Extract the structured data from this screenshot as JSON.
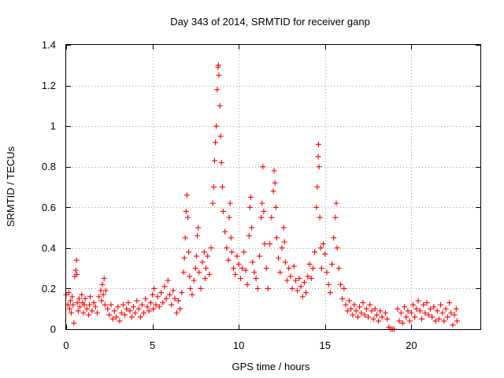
{
  "chart_data": {
    "type": "scatter",
    "title": "Day 343 of 2014, SRMTID for receiver ganp",
    "xlabel": "GPS time / hours",
    "ylabel": "SRMTID / TECUs",
    "xlim": [
      0,
      24
    ],
    "ylim": [
      0,
      1.4
    ],
    "x_ticks": [
      0,
      5,
      10,
      15,
      20
    ],
    "y_ticks": [
      0,
      0.2,
      0.4,
      0.6,
      0.8,
      1,
      1.2,
      1.4
    ],
    "x_tick_labels": [
      "0",
      "5",
      "10",
      "15",
      "20"
    ],
    "y_tick_labels": [
      "0",
      "0.2",
      "0.4",
      "0.6",
      "0.8",
      "1",
      "1.2",
      "1.4"
    ],
    "grid": true,
    "marker": "plus",
    "series": [
      {
        "name": "SRMTID",
        "color": "#ff0000",
        "points": [
          [
            0.0,
            0.17
          ],
          [
            0.1,
            0.12
          ],
          [
            0.15,
            0.18
          ],
          [
            0.2,
            0.1
          ],
          [
            0.25,
            0.14
          ],
          [
            0.3,
            0.08
          ],
          [
            0.35,
            0.16
          ],
          [
            0.4,
            0.12
          ],
          [
            0.45,
            0.03
          ],
          [
            0.5,
            0.26
          ],
          [
            0.55,
            0.29
          ],
          [
            0.6,
            0.34
          ],
          [
            0.62,
            0.27
          ],
          [
            0.65,
            0.13
          ],
          [
            0.7,
            0.09
          ],
          [
            0.75,
            0.15
          ],
          [
            0.8,
            0.11
          ],
          [
            0.9,
            0.17
          ],
          [
            0.95,
            0.13
          ],
          [
            1.0,
            0.08
          ],
          [
            1.05,
            0.12
          ],
          [
            1.1,
            0.15
          ],
          [
            1.2,
            0.1
          ],
          [
            1.3,
            0.07
          ],
          [
            1.35,
            0.12
          ],
          [
            1.4,
            0.16
          ],
          [
            1.5,
            0.09
          ],
          [
            1.6,
            0.13
          ],
          [
            1.7,
            0.11
          ],
          [
            1.8,
            0.08
          ],
          [
            1.9,
            0.16
          ],
          [
            2.0,
            0.19
          ],
          [
            2.05,
            0.14
          ],
          [
            2.1,
            0.22
          ],
          [
            2.15,
            0.17
          ],
          [
            2.2,
            0.25
          ],
          [
            2.25,
            0.12
          ],
          [
            2.3,
            0.19
          ],
          [
            2.4,
            0.1
          ],
          [
            2.5,
            0.07
          ],
          [
            2.6,
            0.12
          ],
          [
            2.7,
            0.05
          ],
          [
            2.8,
            0.09
          ],
          [
            2.9,
            0.06
          ],
          [
            3.0,
            0.11
          ],
          [
            3.1,
            0.04
          ],
          [
            3.2,
            0.08
          ],
          [
            3.3,
            0.12
          ],
          [
            3.4,
            0.07
          ],
          [
            3.5,
            0.1
          ],
          [
            3.6,
            0.13
          ],
          [
            3.7,
            0.09
          ],
          [
            3.8,
            0.06
          ],
          [
            3.9,
            0.11
          ],
          [
            4.0,
            0.08
          ],
          [
            4.1,
            0.14
          ],
          [
            4.2,
            0.1
          ],
          [
            4.3,
            0.06
          ],
          [
            4.4,
            0.12
          ],
          [
            4.5,
            0.08
          ],
          [
            4.6,
            0.15
          ],
          [
            4.7,
            0.11
          ],
          [
            4.8,
            0.09
          ],
          [
            4.9,
            0.13
          ],
          [
            5.0,
            0.17
          ],
          [
            5.05,
            0.1
          ],
          [
            5.1,
            0.2
          ],
          [
            5.2,
            0.12
          ],
          [
            5.3,
            0.16
          ],
          [
            5.4,
            0.11
          ],
          [
            5.5,
            0.18
          ],
          [
            5.6,
            0.13
          ],
          [
            5.7,
            0.21
          ],
          [
            5.8,
            0.15
          ],
          [
            5.9,
            0.24
          ],
          [
            6.0,
            0.17
          ],
          [
            6.1,
            0.12
          ],
          [
            6.2,
            0.19
          ],
          [
            6.3,
            0.15
          ],
          [
            6.4,
            0.08
          ],
          [
            6.5,
            0.14
          ],
          [
            6.6,
            0.1
          ],
          [
            6.7,
            0.18
          ],
          [
            6.8,
            0.28
          ],
          [
            6.85,
            0.35
          ],
          [
            6.9,
            0.45
          ],
          [
            6.95,
            0.58
          ],
          [
            7.0,
            0.66
          ],
          [
            7.05,
            0.55
          ],
          [
            7.1,
            0.38
          ],
          [
            7.15,
            0.26
          ],
          [
            7.2,
            0.2
          ],
          [
            7.3,
            0.17
          ],
          [
            7.4,
            0.24
          ],
          [
            7.5,
            0.3
          ],
          [
            7.55,
            0.36
          ],
          [
            7.6,
            0.46
          ],
          [
            7.65,
            0.5
          ],
          [
            7.7,
            0.28
          ],
          [
            7.8,
            0.2
          ],
          [
            7.9,
            0.33
          ],
          [
            8.0,
            0.38
          ],
          [
            8.05,
            0.25
          ],
          [
            8.1,
            0.3
          ],
          [
            8.2,
            0.36
          ],
          [
            8.3,
            0.27
          ],
          [
            8.4,
            0.4
          ],
          [
            8.5,
            0.62
          ],
          [
            8.55,
            0.7
          ],
          [
            8.6,
            0.83
          ],
          [
            8.65,
            0.92
          ],
          [
            8.7,
            1.0
          ],
          [
            8.75,
            1.18
          ],
          [
            8.8,
            1.29
          ],
          [
            8.82,
            1.3
          ],
          [
            8.85,
            1.25
          ],
          [
            8.9,
            1.1
          ],
          [
            8.95,
            0.95
          ],
          [
            9.0,
            0.82
          ],
          [
            9.05,
            0.7
          ],
          [
            9.1,
            0.58
          ],
          [
            9.2,
            0.48
          ],
          [
            9.3,
            0.4
          ],
          [
            9.4,
            0.34
          ],
          [
            9.45,
            0.55
          ],
          [
            9.5,
            0.62
          ],
          [
            9.55,
            0.45
          ],
          [
            9.6,
            0.38
          ],
          [
            9.7,
            0.3
          ],
          [
            9.8,
            0.27
          ],
          [
            9.9,
            0.36
          ],
          [
            10.0,
            0.32
          ],
          [
            10.1,
            0.25
          ],
          [
            10.2,
            0.3
          ],
          [
            10.3,
            0.38
          ],
          [
            10.4,
            0.29
          ],
          [
            10.5,
            0.22
          ],
          [
            10.6,
            0.46
          ],
          [
            10.65,
            0.6
          ],
          [
            10.7,
            0.65
          ],
          [
            10.75,
            0.5
          ],
          [
            10.8,
            0.33
          ],
          [
            10.9,
            0.28
          ],
          [
            11.0,
            0.25
          ],
          [
            11.1,
            0.2
          ],
          [
            11.2,
            0.36
          ],
          [
            11.3,
            0.55
          ],
          [
            11.35,
            0.62
          ],
          [
            11.4,
            0.8
          ],
          [
            11.45,
            0.58
          ],
          [
            11.5,
            0.42
          ],
          [
            11.6,
            0.3
          ],
          [
            11.7,
            0.2
          ],
          [
            11.8,
            0.42
          ],
          [
            11.9,
            0.55
          ],
          [
            12.0,
            0.68
          ],
          [
            12.05,
            0.78
          ],
          [
            12.1,
            0.72
          ],
          [
            12.15,
            0.6
          ],
          [
            12.2,
            0.45
          ],
          [
            12.3,
            0.35
          ],
          [
            12.4,
            0.28
          ],
          [
            12.5,
            0.4
          ],
          [
            12.6,
            0.5
          ],
          [
            12.65,
            0.43
          ],
          [
            12.7,
            0.33
          ],
          [
            12.8,
            0.24
          ],
          [
            12.9,
            0.3
          ],
          [
            13.0,
            0.26
          ],
          [
            13.1,
            0.2
          ],
          [
            13.2,
            0.31
          ],
          [
            13.3,
            0.24
          ],
          [
            13.4,
            0.19
          ],
          [
            13.5,
            0.25
          ],
          [
            13.6,
            0.21
          ],
          [
            13.7,
            0.16
          ],
          [
            13.8,
            0.23
          ],
          [
            13.9,
            0.18
          ],
          [
            14.0,
            0.26
          ],
          [
            14.1,
            0.32
          ],
          [
            14.2,
            0.25
          ],
          [
            14.3,
            0.3
          ],
          [
            14.4,
            0.38
          ],
          [
            14.5,
            0.6
          ],
          [
            14.55,
            0.7
          ],
          [
            14.6,
            0.85
          ],
          [
            14.62,
            0.91
          ],
          [
            14.65,
            0.8
          ],
          [
            14.7,
            0.55
          ],
          [
            14.75,
            0.4
          ],
          [
            14.8,
            0.3
          ],
          [
            14.9,
            0.42
          ],
          [
            15.0,
            0.37
          ],
          [
            15.1,
            0.28
          ],
          [
            15.2,
            0.22
          ],
          [
            15.3,
            0.18
          ],
          [
            15.4,
            0.32
          ],
          [
            15.5,
            0.45
          ],
          [
            15.6,
            0.55
          ],
          [
            15.65,
            0.62
          ],
          [
            15.7,
            0.4
          ],
          [
            15.8,
            0.3
          ],
          [
            15.9,
            0.22
          ],
          [
            16.0,
            0.15
          ],
          [
            16.1,
            0.2
          ],
          [
            16.2,
            0.12
          ],
          [
            16.3,
            0.09
          ],
          [
            16.4,
            0.14
          ],
          [
            16.5,
            0.1
          ],
          [
            16.6,
            0.07
          ],
          [
            16.7,
            0.12
          ],
          [
            16.8,
            0.09
          ],
          [
            16.9,
            0.06
          ],
          [
            17.0,
            0.11
          ],
          [
            17.1,
            0.08
          ],
          [
            17.2,
            0.13
          ],
          [
            17.3,
            0.07
          ],
          [
            17.4,
            0.1
          ],
          [
            17.5,
            0.06
          ],
          [
            17.6,
            0.12
          ],
          [
            17.7,
            0.09
          ],
          [
            17.8,
            0.05
          ],
          [
            17.9,
            0.1
          ],
          [
            18.0,
            0.07
          ],
          [
            18.1,
            0.04
          ],
          [
            18.2,
            0.09
          ],
          [
            18.3,
            0.06
          ],
          [
            18.5,
            0.08
          ],
          [
            18.6,
            0.05
          ],
          [
            18.7,
            0.01
          ],
          [
            18.8,
            0.0
          ],
          [
            18.9,
            0.0
          ],
          [
            19.0,
            0.0
          ],
          [
            19.2,
            0.1
          ],
          [
            19.3,
            0.04
          ],
          [
            19.4,
            0.08
          ],
          [
            19.5,
            0.03
          ],
          [
            19.6,
            0.11
          ],
          [
            19.7,
            0.06
          ],
          [
            19.8,
            0.09
          ],
          [
            19.9,
            0.04
          ],
          [
            20.0,
            0.08
          ],
          [
            20.1,
            0.12
          ],
          [
            20.2,
            0.06
          ],
          [
            20.3,
            0.1
          ],
          [
            20.4,
            0.14
          ],
          [
            20.5,
            0.09
          ],
          [
            20.6,
            0.05
          ],
          [
            20.7,
            0.12
          ],
          [
            20.8,
            0.08
          ],
          [
            20.9,
            0.13
          ],
          [
            21.0,
            0.07
          ],
          [
            21.1,
            0.1
          ],
          [
            21.2,
            0.06
          ],
          [
            21.3,
            0.11
          ],
          [
            21.4,
            0.04
          ],
          [
            21.5,
            0.09
          ],
          [
            21.6,
            0.05
          ],
          [
            21.7,
            0.12
          ],
          [
            21.8,
            0.08
          ],
          [
            21.9,
            0.04
          ],
          [
            22.0,
            0.1
          ],
          [
            22.1,
            0.06
          ],
          [
            22.2,
            0.13
          ],
          [
            22.3,
            0.08
          ],
          [
            22.4,
            0.02
          ],
          [
            22.5,
            0.07
          ],
          [
            22.6,
            0.1
          ],
          [
            22.65,
            0.04
          ]
        ]
      }
    ]
  }
}
